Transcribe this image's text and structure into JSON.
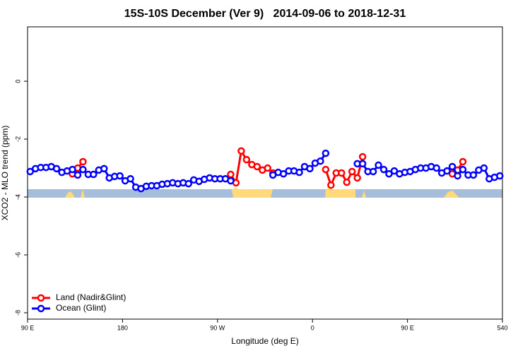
{
  "chart_data": {
    "type": "line",
    "title": "15S-10S December (Ver 9)   2014-09-06 to 2018-12-31",
    "xlabel": "Longitude (deg E)",
    "ylabel": "XCO2 - MLO trend (ppm)",
    "x": [
      92.5,
      97.5,
      102.5,
      107.5,
      112.5,
      117.5,
      122.5,
      127.5,
      132.5,
      137.5,
      142.5,
      147.5,
      152.5,
      157.5,
      162.5,
      167.5,
      172.5,
      177.5,
      182.5,
      187.5,
      192.5,
      197.5,
      202.5,
      207.5,
      212.5,
      217.5,
      222.5,
      227.5,
      232.5,
      237.5,
      242.5,
      247.5,
      252.5,
      257.5,
      262.5,
      267.5,
      272.5,
      277.5,
      282.5,
      287.5,
      292.5,
      297.5,
      302.5,
      307.5,
      312.5,
      317.5,
      322.5,
      327.5,
      332.5,
      337.5,
      342.5,
      347.5,
      352.5,
      357.5,
      362.5,
      367.5,
      372.5,
      377.5,
      382.5,
      387.5,
      392.5,
      397.5,
      402.5,
      407.5,
      412.5,
      417.5,
      422.5,
      427.5,
      432.5,
      437.5,
      442.5,
      447.5,
      452.5,
      457.5,
      462.5,
      467.5,
      472.5,
      477.5,
      482.5,
      487.5,
      492.5,
      497.5,
      502.5,
      507.5,
      512.5,
      517.5,
      522.5,
      527.5,
      532.5,
      537.5
    ],
    "series": [
      {
        "name": "Land (Nadir&Glint)",
        "color": "#ff0000",
        "values": [
          null,
          null,
          null,
          null,
          null,
          null,
          null,
          null,
          -3.2,
          -3.0,
          -2.78,
          null,
          null,
          null,
          null,
          null,
          null,
          null,
          null,
          null,
          null,
          null,
          null,
          null,
          null,
          null,
          null,
          null,
          null,
          null,
          null,
          null,
          null,
          null,
          null,
          null,
          null,
          null,
          -3.22,
          -3.51,
          -2.41,
          -2.71,
          -2.88,
          -2.95,
          -3.07,
          -3.0,
          -3.17,
          null,
          null,
          null,
          null,
          null,
          null,
          null,
          null,
          null,
          -3.05,
          -3.59,
          -3.17,
          -3.17,
          -3.49,
          -3.12,
          -3.34,
          -2.61,
          null,
          null,
          null,
          null,
          null,
          null,
          null,
          null,
          null,
          null,
          null,
          null,
          null,
          null,
          null,
          null,
          -3.2,
          -3.07,
          -2.78,
          null,
          null,
          null,
          null,
          null,
          null,
          null
        ]
      },
      {
        "name": "Ocean (Glint)",
        "color": "#0000ff",
        "values": [
          -3.12,
          -3.02,
          -2.98,
          -2.98,
          -2.95,
          -3.02,
          -3.15,
          -3.1,
          -3.05,
          -3.24,
          -3.05,
          -3.22,
          -3.22,
          -3.07,
          -3.02,
          -3.34,
          -3.29,
          -3.27,
          -3.44,
          -3.37,
          -3.66,
          -3.71,
          -3.63,
          -3.61,
          -3.61,
          -3.56,
          -3.54,
          -3.51,
          -3.54,
          -3.51,
          -3.54,
          -3.41,
          -3.46,
          -3.39,
          -3.34,
          -3.37,
          -3.37,
          -3.37,
          -3.44,
          null,
          null,
          null,
          null,
          null,
          null,
          null,
          -3.24,
          -3.15,
          -3.2,
          -3.1,
          -3.1,
          -3.15,
          -2.95,
          -3.02,
          -2.83,
          -2.76,
          -2.49,
          null,
          null,
          null,
          null,
          null,
          -2.85,
          -2.85,
          -3.12,
          -3.12,
          -2.9,
          -3.05,
          -3.2,
          -3.1,
          -3.2,
          -3.15,
          -3.12,
          -3.05,
          -3.0,
          -3.0,
          -2.95,
          -3.0,
          -3.17,
          -3.1,
          -2.95,
          -3.27,
          -3.05,
          -3.24,
          -3.24,
          -3.07,
          -3.0,
          -3.37,
          -3.32,
          -3.27
        ]
      }
    ],
    "xlim": [
      90,
      540
    ],
    "xticks": [
      {
        "value": 90,
        "label": "90 E"
      },
      180,
      {
        "value": 270,
        "label": "90 W"
      },
      {
        "value": 360,
        "label": "0"
      },
      {
        "value": 450,
        "label": "90 E"
      },
      540
    ],
    "ylim": [
      -8.22,
      1.88
    ],
    "yticks": [
      0,
      -2,
      -4,
      -6,
      -8
    ],
    "legend": "bottom-left"
  }
}
